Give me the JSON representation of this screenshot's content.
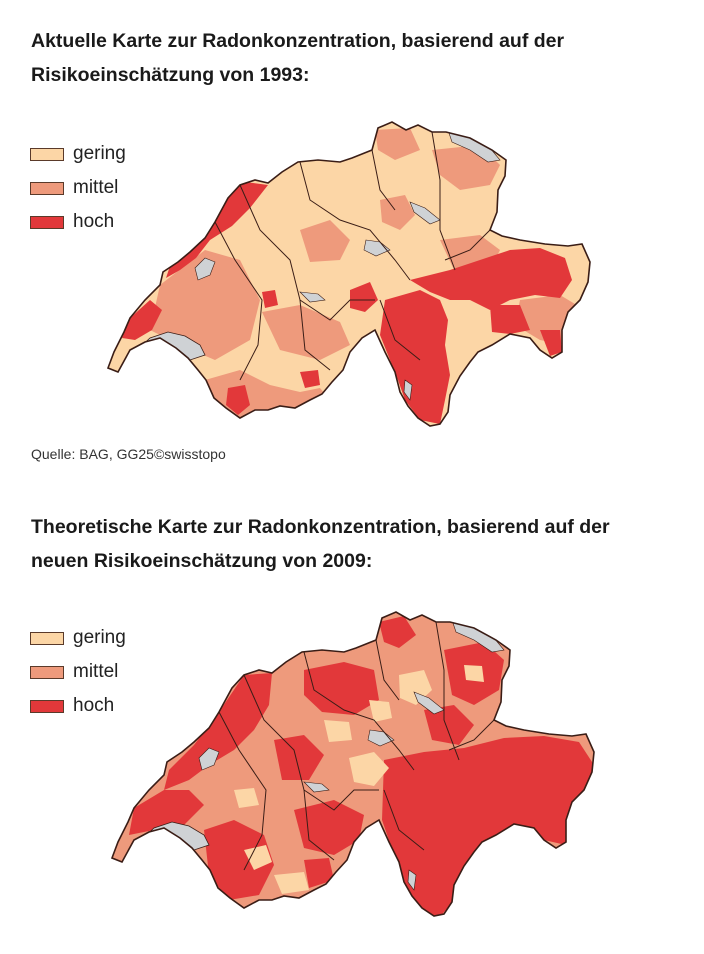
{
  "colors": {
    "gering": "#fcd6a6",
    "mittel": "#ee9a7c",
    "hoch": "#e2383a",
    "lake": "#cfd2d5",
    "border": "#3a1d16"
  },
  "maps": [
    {
      "id": "1993",
      "title_line1": "Aktuelle Karte zur Radonkonzentration, basierend auf der",
      "title_line2": "Risikoeinschätzung von 1993:",
      "legend": [
        {
          "key": "gering",
          "label": "gering"
        },
        {
          "key": "mittel",
          "label": "mittel"
        },
        {
          "key": "hoch",
          "label": "hoch"
        }
      ],
      "source": "Quelle: BAG, GG25©swisstopo"
    },
    {
      "id": "2009",
      "title_line1": "Theoretische Karte zur Radonkonzentration, basierend auf der",
      "title_line2": "neuen Risikoeinschätzung von 2009:",
      "legend": [
        {
          "key": "gering",
          "label": "gering"
        },
        {
          "key": "mittel",
          "label": "mittel"
        },
        {
          "key": "hoch",
          "label": "hoch"
        }
      ]
    }
  ]
}
